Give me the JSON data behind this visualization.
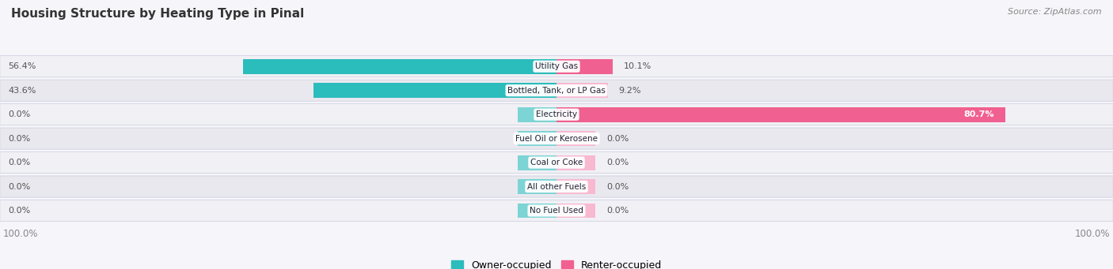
{
  "title": "Housing Structure by Heating Type in Pinal",
  "source": "Source: ZipAtlas.com",
  "categories": [
    "Utility Gas",
    "Bottled, Tank, or LP Gas",
    "Electricity",
    "Fuel Oil or Kerosene",
    "Coal or Coke",
    "All other Fuels",
    "No Fuel Used"
  ],
  "owner_values": [
    56.4,
    43.6,
    0.0,
    0.0,
    0.0,
    0.0,
    0.0
  ],
  "renter_values": [
    10.1,
    9.2,
    80.7,
    0.0,
    0.0,
    0.0,
    0.0
  ],
  "owner_color_strong": "#2bbcbc",
  "owner_color_light": "#7dd4d4",
  "renter_color_strong": "#f06090",
  "renter_color_light": "#f8b8d0",
  "row_bg_odd": "#f0f0f5",
  "row_bg_even": "#e8e8ee",
  "label_color": "#555555",
  "title_color": "#333333",
  "source_color": "#888888",
  "max_value": 100.0,
  "stub_size": 7.0,
  "figwidth": 14.06,
  "figheight": 3.41
}
